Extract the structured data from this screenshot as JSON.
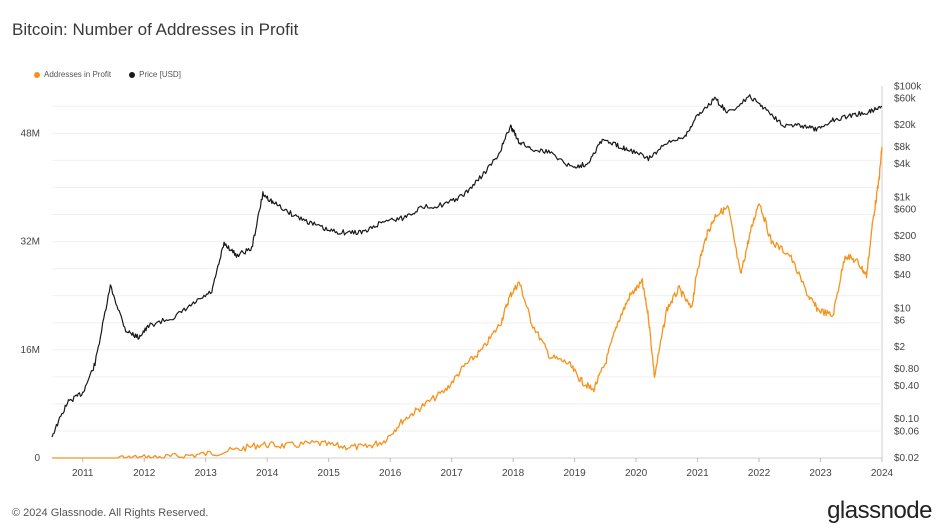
{
  "chart_data": {
    "type": "line",
    "title": "Bitcoin: Number of Addresses in Profit",
    "legend": [
      {
        "name": "Addresses in Profit",
        "color": "#f7931a"
      },
      {
        "name": "Price [USD]",
        "color": "#1a1a1a"
      }
    ],
    "legend_placement": "top-left",
    "grid": true,
    "x_ticks": [
      "2011",
      "2012",
      "2013",
      "2014",
      "2015",
      "2016",
      "2017",
      "2018",
      "2019",
      "2020",
      "2021",
      "2022",
      "2023",
      "2024"
    ],
    "y_left_ticks": [
      "0",
      "16M",
      "32M",
      "48M"
    ],
    "y_left_range": [
      0,
      55000000
    ],
    "y_right_ticks": [
      "$0.02",
      "$0.06",
      "$0.10",
      "$0.40",
      "$0.80",
      "$2",
      "$6",
      "$10",
      "$40",
      "$80",
      "$200",
      "$600",
      "$1k",
      "$4k",
      "$8k",
      "$20k",
      "$60k",
      "$100k"
    ],
    "y_right_scale": "log",
    "series": [
      {
        "name": "Addresses in Profit",
        "axis": "left",
        "color": "#f7931a",
        "x": [
          2010.5,
          2011.0,
          2011.5,
          2012.0,
          2012.5,
          2013.0,
          2013.5,
          2013.9,
          2014.3,
          2014.8,
          2015.2,
          2015.6,
          2015.9,
          2016.2,
          2016.5,
          2016.9,
          2017.2,
          2017.5,
          2017.8,
          2017.95,
          2018.1,
          2018.3,
          2018.6,
          2018.9,
          2019.1,
          2019.3,
          2019.5,
          2019.7,
          2019.9,
          2020.1,
          2020.2,
          2020.3,
          2020.5,
          2020.7,
          2020.9,
          2021.0,
          2021.15,
          2021.3,
          2021.5,
          2021.7,
          2021.85,
          2022.0,
          2022.2,
          2022.5,
          2022.8,
          2022.95,
          2023.2,
          2023.4,
          2023.6,
          2023.75,
          2023.85,
          2023.95,
          2024.0
        ],
        "y": [
          0,
          0,
          0,
          50000,
          200000,
          600000,
          1200000,
          2000000,
          1800000,
          2200000,
          1700000,
          1600000,
          2500000,
          5500000,
          7500000,
          10000000,
          13500000,
          16000000,
          20000000,
          24000000,
          26000000,
          20000000,
          15000000,
          14000000,
          11500000,
          10000000,
          14000000,
          20000000,
          24000000,
          26000000,
          21000000,
          12000000,
          22000000,
          25000000,
          22000000,
          28000000,
          33000000,
          36000000,
          37000000,
          27000000,
          33000000,
          38000000,
          32000000,
          30000000,
          24000000,
          22000000,
          21000000,
          30000000,
          29000000,
          27000000,
          35000000,
          41000000,
          46000000
        ]
      },
      {
        "name": "Price [USD]",
        "axis": "right",
        "color": "#1a1a1a",
        "x": [
          2010.5,
          2010.75,
          2011.0,
          2011.2,
          2011.45,
          2011.7,
          2011.9,
          2012.1,
          2012.5,
          2012.8,
          2013.1,
          2013.3,
          2013.5,
          2013.75,
          2013.93,
          2014.1,
          2014.4,
          2014.7,
          2015.0,
          2015.3,
          2015.6,
          2015.9,
          2016.2,
          2016.5,
          2016.9,
          2017.2,
          2017.5,
          2017.75,
          2017.96,
          2018.1,
          2018.3,
          2018.6,
          2018.95,
          2019.2,
          2019.45,
          2019.7,
          2019.9,
          2020.2,
          2020.5,
          2020.8,
          2021.0,
          2021.28,
          2021.5,
          2021.85,
          2022.1,
          2022.4,
          2022.7,
          2022.95,
          2023.2,
          2023.5,
          2023.8,
          2024.0
        ],
        "y": [
          0.05,
          0.2,
          0.3,
          1,
          25,
          4,
          3,
          5,
          7,
          12,
          20,
          150,
          90,
          120,
          1150,
          800,
          500,
          350,
          250,
          230,
          240,
          380,
          420,
          650,
          750,
          1100,
          2500,
          5500,
          19000,
          10000,
          7500,
          6500,
          3500,
          4000,
          11000,
          8500,
          7200,
          5000,
          9200,
          13000,
          30000,
          60000,
          33000,
          65000,
          40000,
          20000,
          19500,
          16500,
          25000,
          30000,
          35000,
          44000
        ]
      }
    ]
  },
  "footer": {
    "copyright": "© 2024 Glassnode. All Rights Reserved.",
    "brand": "glassnode"
  }
}
